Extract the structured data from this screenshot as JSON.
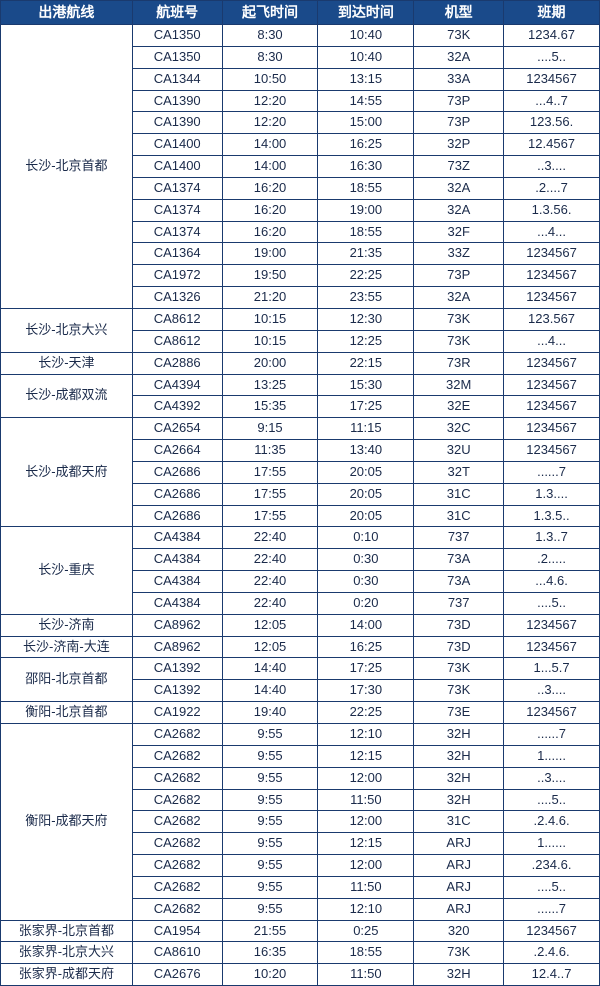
{
  "table": {
    "header_bg": "#1a4a8a",
    "header_color": "#ffffff",
    "border_color": "#1a3a6e",
    "cell_bg": "#ffffff",
    "cell_color": "#1a2a4a",
    "columns": [
      "出港航线",
      "航班号",
      "起飞时间",
      "到达时间",
      "机型",
      "班期"
    ],
    "groups": [
      {
        "route": "长沙-北京首都",
        "rows": [
          [
            "CA1350",
            "8:30",
            "10:40",
            "73K",
            "1234.67"
          ],
          [
            "CA1350",
            "8:30",
            "10:40",
            "32A",
            "....5.."
          ],
          [
            "CA1344",
            "10:50",
            "13:15",
            "33A",
            "1234567"
          ],
          [
            "CA1390",
            "12:20",
            "14:55",
            "73P",
            "...4..7"
          ],
          [
            "CA1390",
            "12:20",
            "15:00",
            "73P",
            "123.56."
          ],
          [
            "CA1400",
            "14:00",
            "16:25",
            "32P",
            "12.4567"
          ],
          [
            "CA1400",
            "14:00",
            "16:30",
            "73Z",
            "..3...."
          ],
          [
            "CA1374",
            "16:20",
            "18:55",
            "32A",
            ".2....7"
          ],
          [
            "CA1374",
            "16:20",
            "19:00",
            "32A",
            "1.3.56."
          ],
          [
            "CA1374",
            "16:20",
            "18:55",
            "32F",
            "...4..."
          ],
          [
            "CA1364",
            "19:00",
            "21:35",
            "33Z",
            "1234567"
          ],
          [
            "CA1972",
            "19:50",
            "22:25",
            "73P",
            "1234567"
          ],
          [
            "CA1326",
            "21:20",
            "23:55",
            "32A",
            "1234567"
          ]
        ]
      },
      {
        "route": "长沙-北京大兴",
        "rows": [
          [
            "CA8612",
            "10:15",
            "12:30",
            "73K",
            "123.567"
          ],
          [
            "CA8612",
            "10:15",
            "12:25",
            "73K",
            "...4..."
          ]
        ]
      },
      {
        "route": "长沙-天津",
        "rows": [
          [
            "CA2886",
            "20:00",
            "22:15",
            "73R",
            "1234567"
          ]
        ]
      },
      {
        "route": "长沙-成都双流",
        "rows": [
          [
            "CA4394",
            "13:25",
            "15:30",
            "32M",
            "1234567"
          ],
          [
            "CA4392",
            "15:35",
            "17:25",
            "32E",
            "1234567"
          ]
        ]
      },
      {
        "route": "长沙-成都天府",
        "rows": [
          [
            "CA2654",
            "9:15",
            "11:15",
            "32C",
            "1234567"
          ],
          [
            "CA2664",
            "11:35",
            "13:40",
            "32U",
            "1234567"
          ],
          [
            "CA2686",
            "17:55",
            "20:05",
            "32T",
            "......7"
          ],
          [
            "CA2686",
            "17:55",
            "20:05",
            "31C",
            "1.3...."
          ],
          [
            "CA2686",
            "17:55",
            "20:05",
            "31C",
            "1.3.5.."
          ]
        ]
      },
      {
        "route": "长沙-重庆",
        "rows": [
          [
            "CA4384",
            "22:40",
            "0:10",
            "737",
            "1.3..7"
          ],
          [
            "CA4384",
            "22:40",
            "0:30",
            "73A",
            ".2....."
          ],
          [
            "CA4384",
            "22:40",
            "0:30",
            "73A",
            "...4.6."
          ],
          [
            "CA4384",
            "22:40",
            "0:20",
            "737",
            "....5.."
          ]
        ]
      },
      {
        "route": "长沙-济南",
        "rows": [
          [
            "CA8962",
            "12:05",
            "14:00",
            "73D",
            "1234567"
          ]
        ]
      },
      {
        "route": "长沙-济南-大连",
        "rows": [
          [
            "CA8962",
            "12:05",
            "16:25",
            "73D",
            "1234567"
          ]
        ]
      },
      {
        "route": "邵阳-北京首都",
        "rows": [
          [
            "CA1392",
            "14:40",
            "17:25",
            "73K",
            "1...5.7"
          ],
          [
            "CA1392",
            "14:40",
            "17:30",
            "73K",
            "..3...."
          ]
        ]
      },
      {
        "route": "衡阳-北京首都",
        "rows": [
          [
            "CA1922",
            "19:40",
            "22:25",
            "73E",
            "1234567"
          ]
        ]
      },
      {
        "route": "衡阳-成都天府",
        "rows": [
          [
            "CA2682",
            "9:55",
            "12:10",
            "32H",
            "......7"
          ],
          [
            "CA2682",
            "9:55",
            "12:15",
            "32H",
            "1......"
          ],
          [
            "CA2682",
            "9:55",
            "12:00",
            "32H",
            "..3...."
          ],
          [
            "CA2682",
            "9:55",
            "11:50",
            "32H",
            "....5.."
          ],
          [
            "CA2682",
            "9:55",
            "12:00",
            "31C",
            ".2.4.6."
          ],
          [
            "CA2682",
            "9:55",
            "12:15",
            "ARJ",
            "1......"
          ],
          [
            "CA2682",
            "9:55",
            "12:00",
            "ARJ",
            ".234.6."
          ],
          [
            "CA2682",
            "9:55",
            "11:50",
            "ARJ",
            "....5.."
          ],
          [
            "CA2682",
            "9:55",
            "12:10",
            "ARJ",
            "......7"
          ]
        ]
      },
      {
        "route": "张家界-北京首都",
        "rows": [
          [
            "CA1954",
            "21:55",
            "0:25",
            "320",
            "1234567"
          ]
        ]
      },
      {
        "route": "张家界-北京大兴",
        "rows": [
          [
            "CA8610",
            "16:35",
            "18:55",
            "73K",
            ".2.4.6."
          ]
        ]
      },
      {
        "route": "张家界-成都天府",
        "rows": [
          [
            "CA2676",
            "10:20",
            "11:50",
            "32H",
            "12.4..7"
          ]
        ]
      }
    ]
  }
}
